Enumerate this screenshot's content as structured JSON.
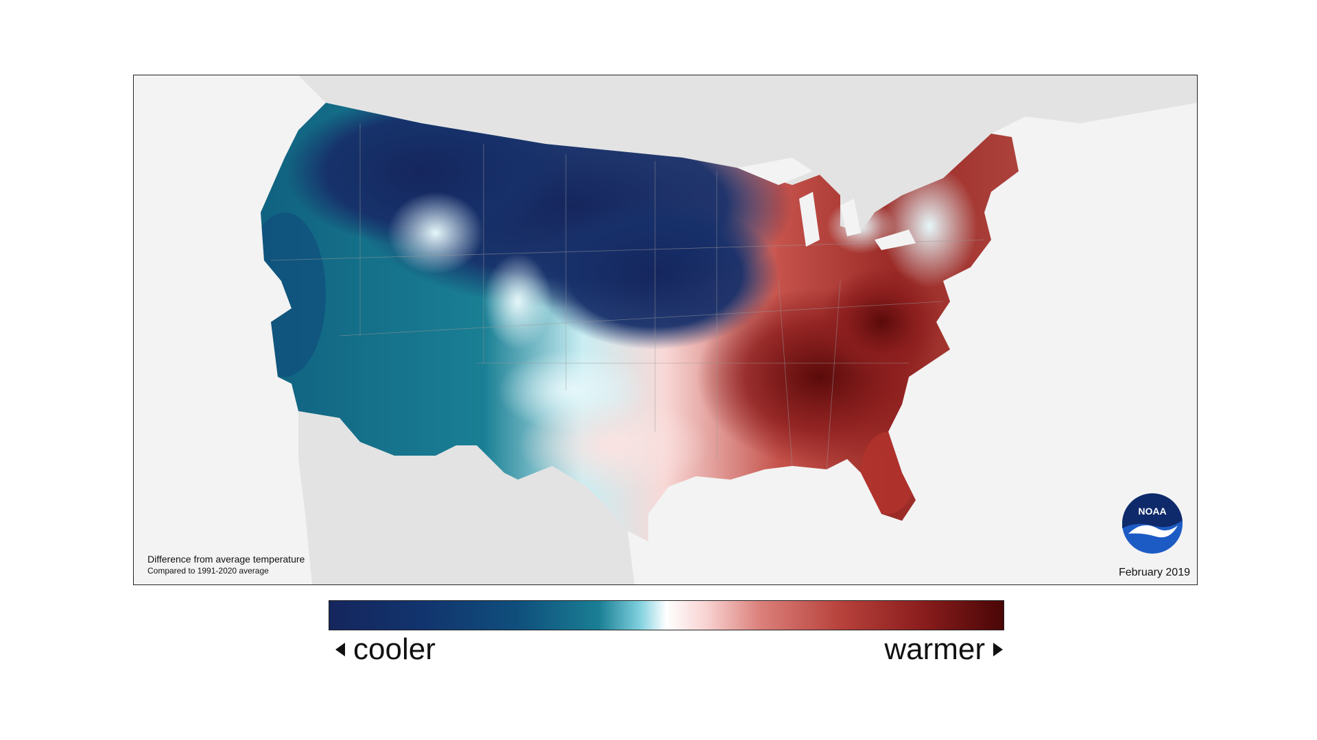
{
  "map": {
    "caption_title": "Difference from average temperature",
    "caption_subtitle": "Compared to 1991-2020 average",
    "date": "February 2019",
    "logo_text": "NOAA",
    "background_land": "#e3e3e3",
    "background_water": "#f3f3f3"
  },
  "legend": {
    "cooler_label": "cooler",
    "warmer_label": "warmer",
    "cool_color": "#15265d",
    "neutral_color": "#ffffff",
    "warm_color": "#4a0606"
  },
  "icons": {
    "left": "triangle-left-icon",
    "right": "triangle-right-icon",
    "logo": "noaa-logo-icon"
  }
}
